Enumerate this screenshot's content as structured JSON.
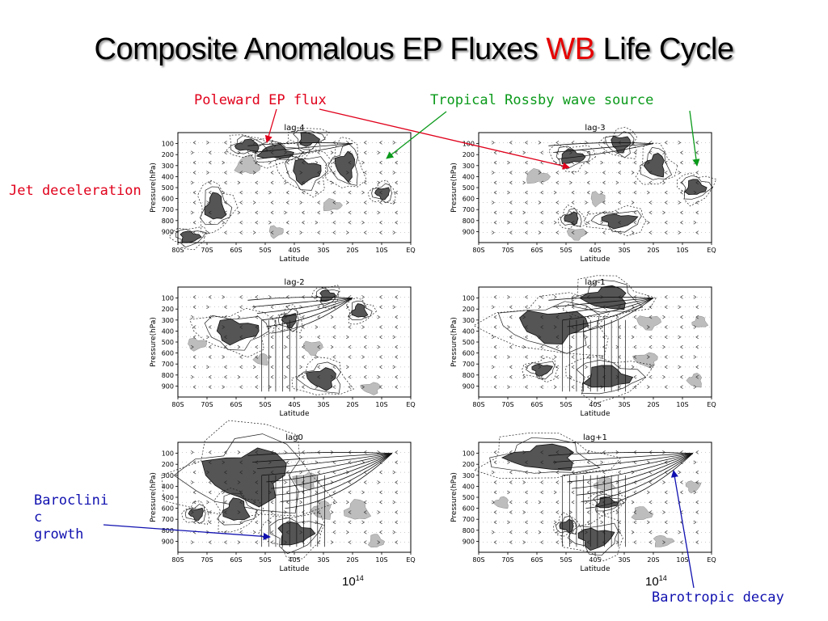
{
  "title": {
    "main": "Composite Anomalous EP Fluxes ",
    "highlight": "WB",
    "tail": " Life Cycle"
  },
  "annotations": {
    "poleward": "Poleward EP flux",
    "tropical": "Tropical Rossby wave source",
    "jet": "Jet deceleration",
    "baroclinic": [
      "Baroclini",
      "c",
      "growth"
    ],
    "barotropic": "Barotropic decay"
  },
  "colors": {
    "red": "#e0001b",
    "green": "#0a9a1a",
    "blue": "#1010b0",
    "dark_shade": "#555555",
    "light_shade": "#bdbdbd"
  },
  "scale_labels": [
    "10",
    "10"
  ],
  "scale_exponents": [
    "14",
    "14"
  ],
  "chart_data": [
    {
      "type": "contour-vector",
      "title": "lag-4",
      "xlabel": "Latitude",
      "ylabel": "Pressure(hPa)",
      "x_ticks": [
        "80S",
        "70S",
        "60S",
        "50S",
        "40S",
        "30S",
        "20S",
        "10S",
        "EQ"
      ],
      "y_ticks": [
        "100",
        "200",
        "300",
        "400",
        "500",
        "600",
        "700",
        "800",
        "900"
      ]
    },
    {
      "type": "contour-vector",
      "title": "lag-3",
      "xlabel": "Latitude",
      "ylabel": "Pressure(hPa)",
      "x_ticks": [
        "80S",
        "70S",
        "60S",
        "50S",
        "40S",
        "30S",
        "20S",
        "10S",
        "EQ"
      ],
      "y_ticks": [
        "100",
        "200",
        "300",
        "400",
        "500",
        "600",
        "700",
        "800",
        "900"
      ]
    },
    {
      "type": "contour-vector",
      "title": "lag-2",
      "xlabel": "Latitude",
      "ylabel": "Pressure(hPa)",
      "x_ticks": [
        "80S",
        "70S",
        "60S",
        "50S",
        "40S",
        "30S",
        "20S",
        "10S",
        "EQ"
      ],
      "y_ticks": [
        "100",
        "200",
        "300",
        "400",
        "500",
        "600",
        "700",
        "800",
        "900"
      ]
    },
    {
      "type": "contour-vector",
      "title": "lag-1",
      "xlabel": "Latitude",
      "ylabel": "Pressure(hPa)",
      "x_ticks": [
        "80S",
        "70S",
        "60S",
        "50S",
        "40S",
        "30S",
        "20S",
        "10S",
        "EQ"
      ],
      "y_ticks": [
        "100",
        "200",
        "300",
        "400",
        "500",
        "600",
        "700",
        "800",
        "900"
      ]
    },
    {
      "type": "contour-vector",
      "title": "lag0",
      "xlabel": "Latitude",
      "ylabel": "Pressure(hPa)",
      "x_ticks": [
        "80S",
        "70S",
        "60S",
        "50S",
        "40S",
        "30S",
        "20S",
        "10S",
        "EQ"
      ],
      "y_ticks": [
        "100",
        "200",
        "300",
        "400",
        "500",
        "600",
        "700",
        "800",
        "900"
      ]
    },
    {
      "type": "contour-vector",
      "title": "lag+1",
      "xlabel": "Latitude",
      "ylabel": "Pressure(hPa)",
      "x_ticks": [
        "80S",
        "70S",
        "60S",
        "50S",
        "40S",
        "30S",
        "20S",
        "10S",
        "EQ"
      ],
      "y_ticks": [
        "100",
        "200",
        "300",
        "400",
        "500",
        "600",
        "700",
        "800",
        "900"
      ]
    }
  ]
}
